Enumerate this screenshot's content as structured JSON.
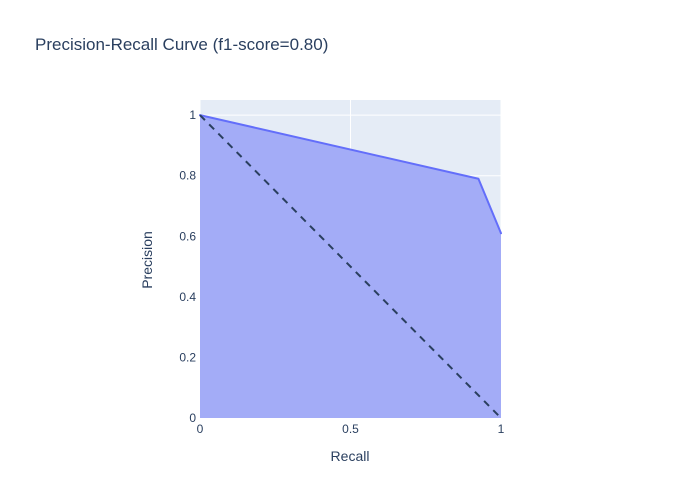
{
  "chart_data": {
    "type": "area",
    "title": "Precision-Recall Curve (f1-score=0.80)",
    "xlabel": "Recall",
    "ylabel": "Precision",
    "xlim": [
      0,
      1
    ],
    "ylim": [
      0,
      1.05
    ],
    "x_ticks": [
      0,
      0.5,
      1
    ],
    "x_tick_labels": [
      "0",
      "0.5",
      "1"
    ],
    "y_ticks": [
      0,
      0.2,
      0.4,
      0.6,
      0.8,
      1
    ],
    "y_tick_labels": [
      "0",
      "0.2",
      "0.4",
      "0.6",
      "0.8",
      "1"
    ],
    "grid": true,
    "legend": "none",
    "series": [
      {
        "x": [
          0,
          0.925,
          1
        ],
        "y": [
          1,
          0.79,
          0.61
        ],
        "fill": "tozeroy",
        "line_color": "#636efa",
        "fill_color": "#a3acf7"
      }
    ],
    "reference_line": {
      "x": [
        0,
        1
      ],
      "y": [
        1,
        0
      ],
      "dash": "dash",
      "color": "#2a3f5f"
    },
    "plot_background": "#e5ecf6",
    "grid_color": "#ffffff"
  }
}
